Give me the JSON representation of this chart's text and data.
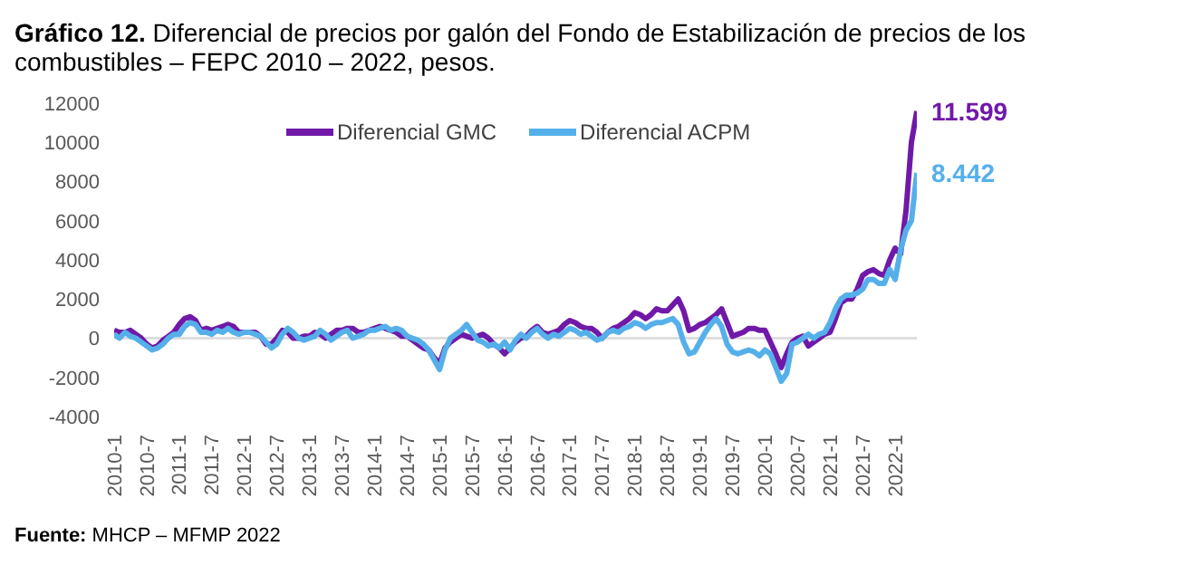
{
  "chart_data": {
    "type": "line",
    "title": "Gráfico 12. Diferencial de precios por galón del Fondo de Estabilización de precios de los combustibles – FEPC 2010 – 2022, pesos.",
    "categories": [
      "2010-1",
      null,
      null,
      null,
      null,
      null,
      "2010-7",
      null,
      null,
      null,
      null,
      null,
      "2011-1",
      null,
      null,
      null,
      null,
      null,
      "2011-7",
      null,
      null,
      null,
      null,
      null,
      "2012-1",
      null,
      null,
      null,
      null,
      null,
      "2012-7",
      null,
      null,
      null,
      null,
      null,
      "2013-1",
      null,
      null,
      null,
      null,
      null,
      "2013-7",
      null,
      null,
      null,
      null,
      null,
      "2014-1",
      null,
      null,
      null,
      null,
      null,
      "2014-7",
      null,
      null,
      null,
      null,
      null,
      "2015-1",
      null,
      null,
      null,
      null,
      null,
      "2015-7",
      null,
      null,
      null,
      null,
      null,
      "2016-1",
      null,
      null,
      null,
      null,
      null,
      "2016-7",
      null,
      null,
      null,
      null,
      null,
      "2017-1",
      null,
      null,
      null,
      null,
      null,
      "2017-7",
      null,
      null,
      null,
      null,
      null,
      "2018-1",
      null,
      null,
      null,
      null,
      null,
      "2018-7",
      null,
      null,
      null,
      null,
      null,
      "2019-1",
      null,
      null,
      null,
      null,
      null,
      "2019-7",
      null,
      null,
      null,
      null,
      null,
      "2020-1",
      null,
      null,
      null,
      null,
      null,
      "2020-7",
      null,
      null,
      null,
      null,
      null,
      "2021-1",
      null,
      null,
      null,
      null,
      null,
      "2021-7",
      null,
      null,
      null,
      null,
      null,
      "2022-1",
      null,
      null,
      null,
      null
    ],
    "series": [
      {
        "name": "Diferencial GMC",
        "color": "#7019a8",
        "values": [
          400,
          300,
          300,
          400,
          200,
          0,
          -300,
          -500,
          -400,
          -100,
          100,
          300,
          700,
          1000,
          1100,
          900,
          400,
          500,
          400,
          500,
          600,
          700,
          600,
          300,
          300,
          300,
          300,
          100,
          -300,
          -300,
          0,
          400,
          300,
          0,
          0,
          100,
          100,
          300,
          200,
          0,
          200,
          400,
          400,
          500,
          500,
          300,
          300,
          400,
          500,
          600,
          500,
          400,
          300,
          100,
          100,
          -100,
          -300,
          -500,
          -600,
          -1000,
          -1300,
          -500,
          -200,
          0,
          200,
          100,
          0,
          100,
          200,
          0,
          -300,
          -500,
          -800,
          -500,
          -200,
          0,
          100,
          400,
          600,
          300,
          200,
          300,
          400,
          700,
          900,
          800,
          600,
          500,
          500,
          300,
          0,
          300,
          500,
          600,
          800,
          1000,
          1300,
          1200,
          1000,
          1200,
          1500,
          1400,
          1400,
          1700,
          2000,
          1400,
          400,
          500,
          700,
          800,
          1000,
          1200,
          1500,
          800,
          100,
          200,
          300,
          500,
          500,
          400,
          400,
          -200,
          -800,
          -1500,
          -800,
          -200,
          0,
          100,
          -400,
          -200,
          0,
          200,
          300,
          1000,
          1800,
          2000,
          2000,
          2500,
          3200,
          3400,
          3500,
          3300,
          3200,
          4000,
          4600,
          4300,
          6500,
          10000,
          11599
        ],
        "value_labels": [
          null,
          null,
          null,
          null,
          null,
          null,
          null,
          null,
          null,
          null,
          null,
          null,
          null,
          null,
          null,
          null,
          null,
          null,
          null,
          null,
          null,
          null,
          null,
          null,
          null,
          null,
          null,
          null,
          null,
          null,
          null,
          null,
          null,
          null,
          null,
          null,
          null,
          null,
          null,
          null,
          null,
          null,
          null,
          null,
          null,
          null,
          null,
          null,
          null,
          null,
          null,
          null,
          null,
          null,
          null,
          null,
          null,
          null,
          null,
          null,
          null,
          null,
          null,
          null,
          null,
          null,
          null,
          null,
          null,
          null,
          null,
          null,
          null,
          null,
          null,
          null,
          null,
          null,
          null,
          null,
          null,
          null,
          null,
          null,
          null,
          null,
          null,
          null,
          null,
          null,
          null,
          null,
          null,
          null,
          null,
          null,
          null,
          null,
          null,
          null,
          null,
          null,
          null,
          null,
          null,
          null,
          null,
          null,
          null,
          null,
          null,
          null,
          null,
          null,
          null,
          null,
          null,
          null,
          null,
          null,
          null,
          null,
          null,
          null,
          null,
          null,
          null,
          null,
          null,
          null,
          null,
          null,
          null,
          null,
          null,
          null,
          null,
          null,
          null,
          null,
          null,
          null,
          null,
          null,
          null,
          null,
          null,
          null,
          "11.599"
        ]
      },
      {
        "name": "Diferencial ACPM",
        "color": "#55b0ea",
        "values": [
          200,
          0,
          300,
          100,
          0,
          -200,
          -400,
          -600,
          -500,
          -300,
          0,
          200,
          200,
          600,
          800,
          700,
          300,
          300,
          200,
          400,
          300,
          500,
          300,
          200,
          300,
          300,
          200,
          100,
          -200,
          -500,
          -300,
          200,
          500,
          300,
          0,
          -100,
          0,
          100,
          400,
          200,
          -100,
          100,
          300,
          400,
          0,
          100,
          200,
          400,
          400,
          500,
          600,
          400,
          500,
          400,
          100,
          0,
          -100,
          -300,
          -600,
          -1100,
          -1600,
          -600,
          0,
          200,
          400,
          700,
          300,
          -100,
          -200,
          -400,
          -300,
          -500,
          -200,
          -600,
          -100,
          200,
          0,
          300,
          500,
          200,
          0,
          200,
          100,
          300,
          500,
          400,
          200,
          300,
          100,
          -100,
          0,
          300,
          400,
          300,
          500,
          600,
          800,
          700,
          500,
          700,
          800,
          800,
          900,
          1000,
          700,
          -200,
          -800,
          -700,
          -200,
          300,
          700,
          1000,
          600,
          -300,
          -700,
          -800,
          -700,
          -600,
          -700,
          -900,
          -600,
          -800,
          -1500,
          -2200,
          -1800,
          -300,
          -200,
          0,
          200,
          0,
          200,
          300,
          800,
          1500,
          2000,
          2200,
          2200,
          2300,
          2500,
          3000,
          3000,
          2800,
          2800,
          3500,
          3000,
          4500,
          5500,
          6000,
          8442
        ],
        "value_labels": [
          null,
          null,
          null,
          null,
          null,
          null,
          null,
          null,
          null,
          null,
          null,
          null,
          null,
          null,
          null,
          null,
          null,
          null,
          null,
          null,
          null,
          null,
          null,
          null,
          null,
          null,
          null,
          null,
          null,
          null,
          null,
          null,
          null,
          null,
          null,
          null,
          null,
          null,
          null,
          null,
          null,
          null,
          null,
          null,
          null,
          null,
          null,
          null,
          null,
          null,
          null,
          null,
          null,
          null,
          null,
          null,
          null,
          null,
          null,
          null,
          null,
          null,
          null,
          null,
          null,
          null,
          null,
          null,
          null,
          null,
          null,
          null,
          null,
          null,
          null,
          null,
          null,
          null,
          null,
          null,
          null,
          null,
          null,
          null,
          null,
          null,
          null,
          null,
          null,
          null,
          null,
          null,
          null,
          null,
          null,
          null,
          null,
          null,
          null,
          null,
          null,
          null,
          null,
          null,
          null,
          null,
          null,
          null,
          null,
          null,
          null,
          null,
          null,
          null,
          null,
          null,
          null,
          null,
          null,
          null,
          null,
          null,
          null,
          null,
          null,
          null,
          null,
          null,
          null,
          null,
          null,
          null,
          null,
          null,
          null,
          null,
          null,
          null,
          null,
          null,
          null,
          null,
          null,
          null,
          null,
          null,
          null,
          null,
          "8.442"
        ]
      }
    ],
    "ylim": [
      -4000,
      12000
    ],
    "yticks": [
      -4000,
      -2000,
      0,
      2000,
      4000,
      6000,
      8000,
      10000,
      12000
    ],
    "ref_lines": [
      {
        "axis": "y",
        "value": 0,
        "color": "#d9d9d9"
      }
    ],
    "legend": "top",
    "grid": false,
    "annotations": [
      "Fuente: MHCP – MFMP 2022"
    ]
  }
}
